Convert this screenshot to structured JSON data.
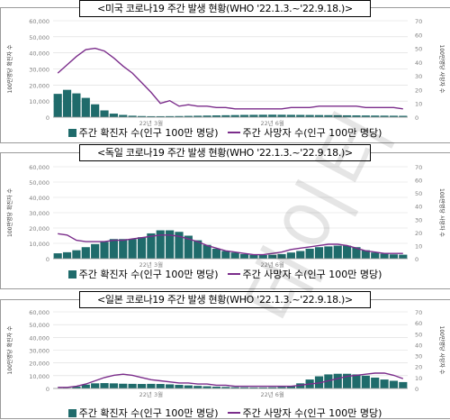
{
  "charts": [
    {
      "title": "<미국 코로나19 주간 발생 현황(WHO '22.1.3.~'22.9.18.)>",
      "legend_bar": "주간 확진자 수(인구 100만 명당)",
      "legend_line": "주간 사망자 수(인구 100만 명당)",
      "y_left_label": "100만명당 확진자 수",
      "y_right_label": "100만명당 사망자 수",
      "x_labels": [
        "22년 3월",
        "22년 6월"
      ],
      "y_left_ticks": [
        "0",
        "10,000",
        "20,000",
        "30,000",
        "40,000",
        "50,000",
        "60,000"
      ],
      "y_right_ticks": [
        "0",
        "10",
        "20",
        "30",
        "40",
        "50",
        "60",
        "70"
      ]
    },
    {
      "title": "<독일 코로나19 주간 발생 현황(WHO '22.1.3.~'22.9.18.)>",
      "legend_bar": "주간 확진자 수(인구 100만 명당)",
      "legend_line": "주간 사망자 수(인구 100만 명당)",
      "y_left_label": "100만명당 확진자 수",
      "y_right_label": "100만명당 사망자 수",
      "x_labels": [
        "22년 3월",
        "22년 6월"
      ],
      "y_left_ticks": [
        "0",
        "10,000",
        "20,000",
        "30,000",
        "40,000",
        "50,000",
        "60,000"
      ],
      "y_right_ticks": [
        "0",
        "10",
        "20",
        "30",
        "40",
        "50",
        "60",
        "70"
      ]
    },
    {
      "title": "<일본 코로나19 주간 발생 현황(WHO '22.1.3.~'22.9.18.)>",
      "legend_bar": "주간 확진자 수(인구 100만 명당)",
      "legend_line": "주간 사망자 수(인구 100만 명당)",
      "y_left_label": "100만명당 확진자 수",
      "y_right_label": "100만명당 사망자 수",
      "x_labels": [
        "22년 3월",
        "22년 6월"
      ],
      "y_left_ticks": [
        "0",
        "10,000",
        "20,000",
        "30,000",
        "40,000",
        "50,000",
        "60,000"
      ],
      "y_right_ticks": [
        "0",
        "10",
        "20",
        "30",
        "40",
        "50",
        "60",
        "70"
      ]
    }
  ],
  "watermark": "데이터",
  "colors": {
    "bar": "#1f6b6b",
    "line": "#7b2d8b",
    "grid": "#d9d9d9",
    "axis_text": "#808080"
  },
  "chart_data": [
    {
      "type": "bar",
      "title": "<미국 코로나19 주간 발생 현황(WHO '22.1.3.~'22.9.18.)>",
      "ylim": [
        0,
        60000
      ],
      "y2lim": [
        0,
        70
      ],
      "series": [
        {
          "name": "주간 확진자 수(인구 100만 명당)",
          "type": "bar",
          "values": [
            14500,
            17000,
            14800,
            12000,
            8000,
            4200,
            2200,
            1400,
            900,
            700,
            600,
            600,
            650,
            700,
            800,
            900,
            1000,
            1100,
            1200,
            1300,
            1400,
            1450,
            1500,
            1550,
            1500,
            1450,
            1400,
            1350,
            1300,
            1250,
            1200,
            1150,
            1100,
            1050,
            1000,
            950,
            900,
            850
          ]
        },
        {
          "name": "주간 사망자 수(인구 100만 명당)",
          "type": "line",
          "values": [
            32,
            38,
            44,
            49,
            50,
            48,
            43,
            37,
            32,
            25,
            18,
            10,
            12,
            8,
            9,
            8,
            8,
            7,
            7,
            6,
            6,
            6,
            6,
            6,
            6,
            7,
            7,
            7,
            8,
            8,
            8,
            8,
            8,
            7,
            7,
            7,
            7,
            6
          ]
        }
      ]
    },
    {
      "type": "bar",
      "title": "<독일 코로나19 주간 발생 현황(WHO '22.1.3.~'22.9.18.)>",
      "ylim": [
        0,
        60000
      ],
      "y2lim": [
        0,
        70
      ],
      "series": [
        {
          "name": "주간 확진자 수(인구 100만 명당)",
          "type": "bar",
          "values": [
            3500,
            4200,
            5500,
            7500,
            9500,
            11000,
            12800,
            12800,
            12800,
            14000,
            16500,
            18500,
            18500,
            17500,
            15000,
            12000,
            9000,
            6500,
            5000,
            4000,
            3000,
            2500,
            2400,
            2500,
            3000,
            4000,
            5000,
            6500,
            7500,
            8000,
            8500,
            8500,
            7500,
            5500,
            4000,
            3200,
            2800,
            2600
          ]
        },
        {
          "name": "주간 사망자 수(인구 100만 명당)",
          "type": "line",
          "values": [
            19,
            18,
            14,
            13,
            13,
            13,
            14,
            14,
            15,
            16,
            17,
            18,
            18,
            17,
            15,
            13,
            10,
            8,
            6,
            5,
            4,
            3,
            3,
            4,
            5,
            7,
            8,
            9,
            10,
            11,
            11,
            10,
            8,
            6,
            5,
            4,
            4,
            4
          ]
        }
      ]
    },
    {
      "type": "bar",
      "title": "<일본 코로나19 주간 발생 현황(WHO '22.1.3.~'22.9.18.)>",
      "ylim": [
        0,
        60000
      ],
      "y2lim": [
        0,
        70
      ],
      "series": [
        {
          "name": "주간 확진자 수(인구 100만 명당)",
          "type": "bar",
          "values": [
            100,
            400,
            1500,
            3000,
            4000,
            4200,
            4000,
            3700,
            3600,
            3500,
            3600,
            3500,
            3200,
            2800,
            2400,
            2000,
            1700,
            1400,
            1200,
            1000,
            900,
            800,
            800,
            900,
            1200,
            2000,
            4000,
            7000,
            9500,
            11000,
            11500,
            11500,
            11000,
            10000,
            8500,
            7000,
            6000,
            5000
          ]
        },
        {
          "name": "주간 사망자 수(인구 100만 명당)",
          "type": "line",
          "values": [
            1,
            1,
            2,
            4,
            7,
            10,
            12,
            13,
            12,
            10,
            8,
            7,
            6,
            5,
            5,
            4,
            4,
            3,
            3,
            2,
            2,
            2,
            2,
            2,
            2,
            2,
            3,
            4,
            5,
            7,
            9,
            11,
            12,
            13,
            14,
            14,
            12,
            9
          ]
        }
      ]
    }
  ]
}
